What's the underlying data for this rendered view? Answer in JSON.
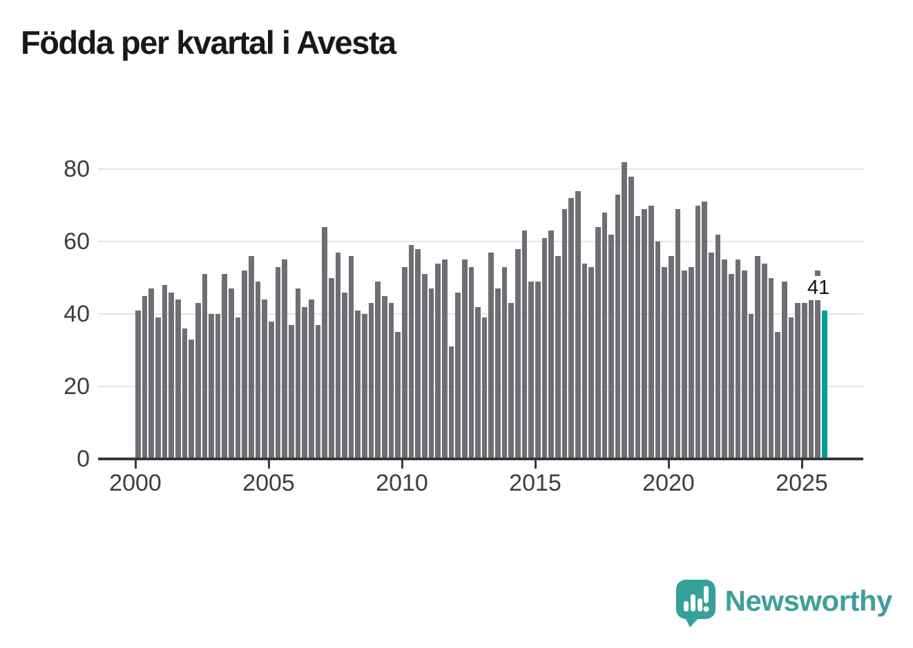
{
  "title": "Födda per kvartal i Avesta",
  "chart_data": {
    "type": "bar",
    "title": "Födda per kvartal i Avesta",
    "x_unit": "quarter",
    "xlabel": "",
    "ylabel": "",
    "ylim": [
      0,
      84
    ],
    "grid": true,
    "legend": false,
    "bar_color": "#6e6e74",
    "highlight_color": "#00a09a",
    "highlight_quarter": "2025 Q4",
    "highlight_value": 41,
    "yticks": [
      0,
      20,
      40,
      60,
      80
    ],
    "xticks": [
      2000,
      2005,
      2010,
      2015,
      2020,
      2025
    ],
    "years": [
      {
        "year": 2000,
        "values": [
          41,
          45,
          47,
          39
        ]
      },
      {
        "year": 2001,
        "values": [
          48,
          46,
          44,
          36
        ]
      },
      {
        "year": 2002,
        "values": [
          33,
          43,
          51,
          40
        ]
      },
      {
        "year": 2003,
        "values": [
          40,
          51,
          47,
          39
        ]
      },
      {
        "year": 2004,
        "values": [
          52,
          56,
          49,
          44
        ]
      },
      {
        "year": 2005,
        "values": [
          38,
          53,
          55,
          37
        ]
      },
      {
        "year": 2006,
        "values": [
          47,
          42,
          44,
          37
        ]
      },
      {
        "year": 2007,
        "values": [
          64,
          50,
          57,
          46
        ]
      },
      {
        "year": 2008,
        "values": [
          56,
          41,
          40,
          43
        ]
      },
      {
        "year": 2009,
        "values": [
          49,
          45,
          43,
          35
        ]
      },
      {
        "year": 2010,
        "values": [
          53,
          59,
          58,
          51
        ]
      },
      {
        "year": 2011,
        "values": [
          47,
          54,
          55,
          31
        ]
      },
      {
        "year": 2012,
        "values": [
          46,
          55,
          53,
          42
        ]
      },
      {
        "year": 2013,
        "values": [
          39,
          57,
          47,
          53
        ]
      },
      {
        "year": 2014,
        "values": [
          43,
          58,
          63,
          49
        ]
      },
      {
        "year": 2015,
        "values": [
          49,
          61,
          63,
          56
        ]
      },
      {
        "year": 2016,
        "values": [
          69,
          72,
          74,
          54
        ]
      },
      {
        "year": 2017,
        "values": [
          53,
          64,
          68,
          62
        ]
      },
      {
        "year": 2018,
        "values": [
          73,
          82,
          78,
          67
        ]
      },
      {
        "year": 2019,
        "values": [
          69,
          70,
          60,
          53
        ]
      },
      {
        "year": 2020,
        "values": [
          56,
          69,
          52,
          53
        ]
      },
      {
        "year": 2021,
        "values": [
          70,
          71,
          57,
          62
        ]
      },
      {
        "year": 2022,
        "values": [
          55,
          51,
          55,
          52
        ]
      },
      {
        "year": 2023,
        "values": [
          40,
          56,
          54,
          50
        ]
      },
      {
        "year": 2024,
        "values": [
          35,
          49,
          39,
          43
        ]
      },
      {
        "year": 2025,
        "values": [
          43,
          45,
          52,
          41
        ]
      }
    ]
  },
  "annotation": {
    "latest_value_label": "41"
  },
  "branding": {
    "wordmark": "Newsworthy",
    "icon": "newsworthy-speech-bubble-chart-icon",
    "teal": "#3f9f99"
  }
}
